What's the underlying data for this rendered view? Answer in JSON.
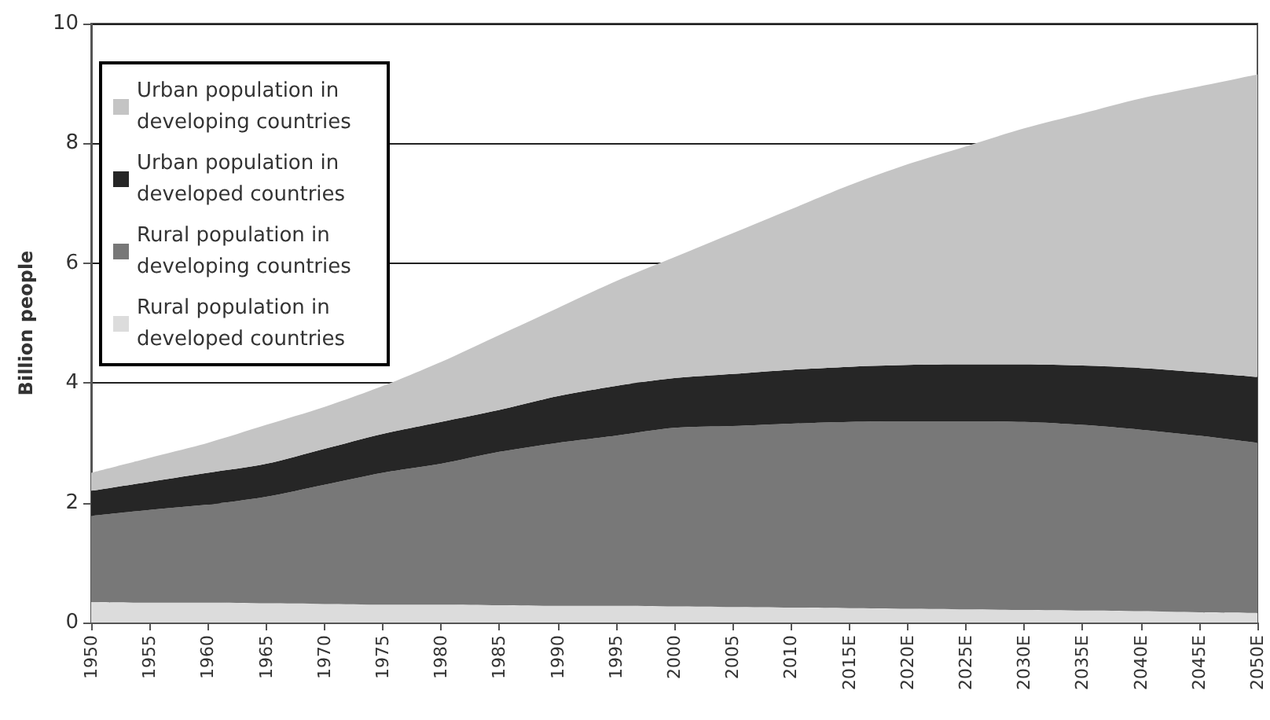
{
  "chart_data": {
    "type": "area",
    "stacked": true,
    "ylabel": "Billion people",
    "categories": [
      "1950",
      "1955",
      "1960",
      "1965",
      "1970",
      "1975",
      "1980",
      "1985",
      "1990",
      "1995",
      "2000",
      "2005",
      "2010",
      "2015E",
      "2020E",
      "2025E",
      "2030E",
      "2035E",
      "2040E",
      "2045E",
      "2050E"
    ],
    "series": [
      {
        "name": "Rural population in developed countries",
        "color": "#dcdcdc",
        "values": [
          0.34,
          0.33,
          0.33,
          0.32,
          0.31,
          0.3,
          0.3,
          0.29,
          0.28,
          0.28,
          0.27,
          0.26,
          0.25,
          0.24,
          0.23,
          0.22,
          0.21,
          0.2,
          0.19,
          0.17,
          0.16
        ]
      },
      {
        "name": "Rural population in developing countries",
        "color": "#787878",
        "values": [
          1.44,
          1.55,
          1.64,
          1.78,
          1.99,
          2.2,
          2.35,
          2.56,
          2.72,
          2.84,
          2.98,
          3.02,
          3.07,
          3.11,
          3.13,
          3.14,
          3.14,
          3.1,
          3.03,
          2.95,
          2.84
        ]
      },
      {
        "name": "Urban population in developed countries",
        "color": "#262626",
        "values": [
          0.42,
          0.47,
          0.53,
          0.55,
          0.6,
          0.65,
          0.7,
          0.7,
          0.78,
          0.83,
          0.83,
          0.87,
          0.9,
          0.92,
          0.94,
          0.95,
          0.96,
          0.99,
          1.03,
          1.06,
          1.1
        ]
      },
      {
        "name": "Urban population in developing countries",
        "color": "#c4c4c4",
        "values": [
          0.3,
          0.4,
          0.5,
          0.65,
          0.7,
          0.8,
          1.0,
          1.25,
          1.47,
          1.75,
          2.02,
          2.35,
          2.68,
          3.03,
          3.35,
          3.64,
          3.94,
          4.21,
          4.5,
          4.77,
          5.05
        ]
      }
    ],
    "ylim": [
      0,
      10
    ],
    "yticks": [
      0,
      2,
      4,
      6,
      8,
      10
    ],
    "grid": "y",
    "legend": "top left"
  }
}
